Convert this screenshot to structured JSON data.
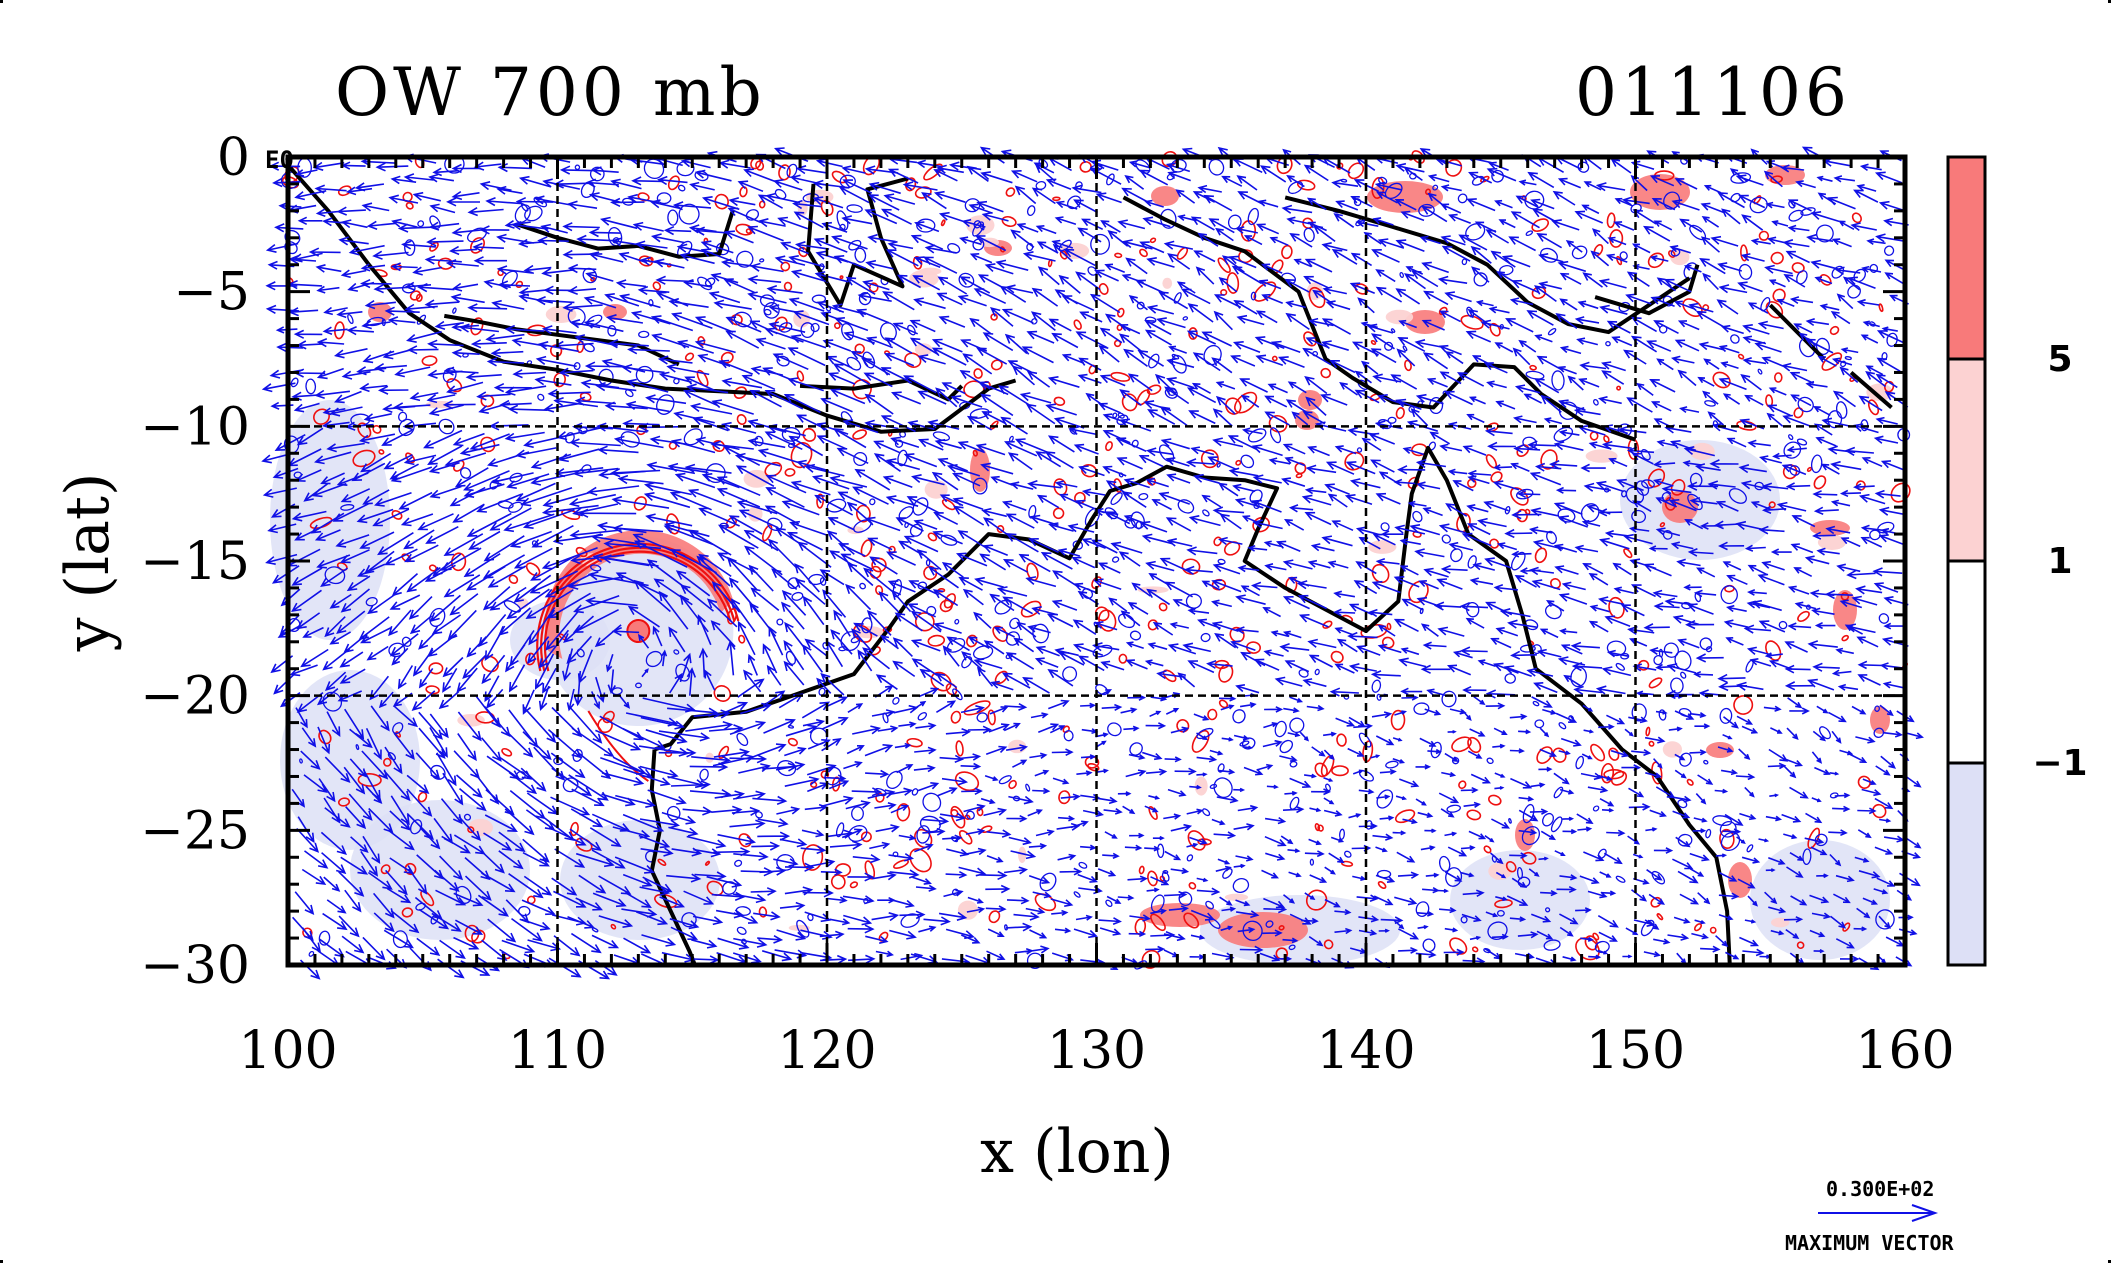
{
  "map": {
    "title": "OW 700 mb",
    "date": "011106",
    "xlabel": "x (lon)",
    "ylabel": "y (lat)",
    "corner_label": "E0",
    "lon_range": [
      100,
      160
    ],
    "lat_range": [
      -30,
      0
    ],
    "x_ticks": [
      "100",
      "110",
      "120",
      "130",
      "140",
      "150",
      "160"
    ],
    "y_ticks": [
      "0",
      "−5",
      "−10",
      "−15",
      "−20",
      "−25",
      "−30"
    ],
    "x_tick_values": [
      100,
      110,
      120,
      130,
      140,
      150,
      160
    ],
    "y_tick_values": [
      0,
      -5,
      -10,
      -15,
      -20,
      -25,
      -30
    ],
    "gridlines": {
      "lon": [
        110,
        120,
        130,
        140,
        150
      ],
      "lat": [
        -10,
        -20
      ]
    },
    "colorbar": {
      "labels": [
        "5",
        "1",
        "−1"
      ],
      "label_values": [
        5,
        1,
        -1
      ],
      "colors": [
        "#f87a7a",
        "#fcd2d2",
        "#ffffff",
        "#dde0f6"
      ]
    },
    "legend": {
      "magnitude": "0.300E+02",
      "caption": "MAXIMUM VECTOR"
    },
    "colors": {
      "vector": "#1010e6",
      "contour_positive": "#ee1010",
      "fill_positive": "#f87a7a",
      "fill_negative": "#dde0f6",
      "coast": "#000000"
    },
    "cyclone_center": {
      "lon": 113.0,
      "lat": -17.6
    }
  }
}
